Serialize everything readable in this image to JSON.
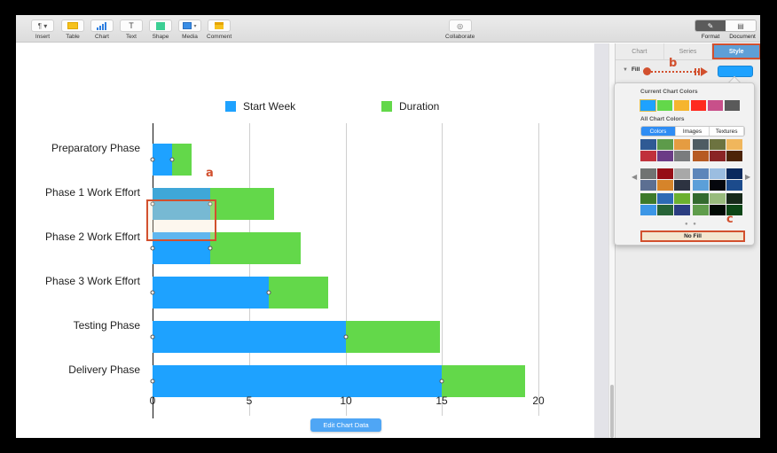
{
  "toolbar": {
    "items": [
      {
        "label": "Insert",
        "icon": "paragraph-icon",
        "glyph": "¶ ▾"
      },
      {
        "label": "Table",
        "icon": "table-icon"
      },
      {
        "label": "Chart",
        "icon": "chart-icon"
      },
      {
        "label": "Text",
        "icon": "text-icon",
        "glyph": "T"
      },
      {
        "label": "Shape",
        "icon": "shape-icon"
      },
      {
        "label": "Media",
        "icon": "media-icon"
      },
      {
        "label": "Comment",
        "icon": "comment-icon"
      }
    ],
    "collaborate_label": "Collaborate",
    "format_label": "Format",
    "document_label": "Document"
  },
  "sidebar": {
    "tabs": [
      {
        "label": "Chart",
        "active": false
      },
      {
        "label": "Series",
        "active": false
      },
      {
        "label": "Style",
        "active": true
      }
    ],
    "fill_label": "Fill",
    "fill_color": "#1ea2ff"
  },
  "popover": {
    "current_title": "Current Chart Colors",
    "current_colors": [
      "#1ea2ff",
      "#63d84a",
      "#f6b52e",
      "#ff2a1f",
      "#c8508a",
      "#5a5a5a"
    ],
    "all_title": "All Chart Colors",
    "segments": [
      {
        "label": "Colors",
        "active": true
      },
      {
        "label": "Images",
        "active": false
      },
      {
        "label": "Textures",
        "active": false
      }
    ],
    "palettes": [
      [
        "#2f5a94",
        "#5d9b4a",
        "#e59c41",
        "#c0313b",
        "#6b3b86",
        "#7a7c7e"
      ],
      [
        "#4e5c63",
        "#6d7340",
        "#f0b65c",
        "#b65a22",
        "#8a2424",
        "#4c2408"
      ],
      [
        "#707372",
        "#960e16",
        "#a8a8a8",
        "#5c6f92",
        "#d6842a",
        "#2d3341"
      ],
      [
        "#5d86ba",
        "#9bbde0",
        "#0a2a5e",
        "#5b9fd9",
        "#05070d",
        "#1c4b8c"
      ],
      [
        "#3d7a2b",
        "#2d6ab5",
        "#6cb02f",
        "#3c96e6",
        "#276337",
        "#2b3d80"
      ],
      [
        "#336a2e",
        "#98bb7d",
        "#17291a",
        "#5f9c4b",
        "#010a04",
        "#0c4616"
      ]
    ],
    "page_dots": "● ●",
    "no_fill_label": "No Fill"
  },
  "annotations": {
    "a": "a",
    "b": "b",
    "c": "c"
  },
  "edit_chart_label": "Edit Chart Data",
  "chart_data": {
    "type": "bar",
    "orientation": "horizontal",
    "stacked": true,
    "categories": [
      "Preparatory Phase",
      "Phase 1 Work Effort",
      "Phase 2 Work Effort",
      "Phase 3 Work Effort",
      "Testing Phase",
      "Delivery Phase"
    ],
    "series": [
      {
        "name": "Start Week",
        "color": "#1ea2ff",
        "values": [
          1,
          3,
          3,
          6,
          10,
          15
        ]
      },
      {
        "name": "Duration",
        "color": "#63d84a",
        "values": [
          1,
          3.3,
          4.7,
          3.1,
          4.9,
          4.3
        ]
      }
    ],
    "xticks": [
      "0",
      "5",
      "10",
      "15",
      "20"
    ],
    "xlim": [
      0,
      20
    ],
    "grid": true,
    "legend_position": "top",
    "selected_bar": {
      "category": "Phase 1 Work Effort",
      "series": "Start Week",
      "color": "#3fa7d8"
    },
    "title": "",
    "xlabel": "",
    "ylabel": ""
  }
}
